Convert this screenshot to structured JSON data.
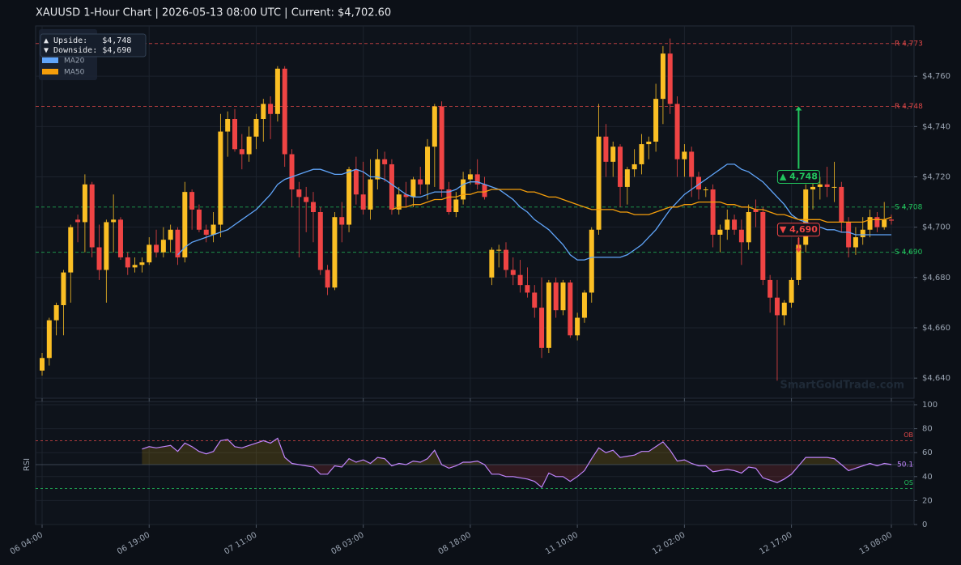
{
  "chart_data": {
    "type": "candlestick",
    "title": "XAUUSD  1-Hour Chart  |  2026-05-13 08:00 UTC  |  Current: $4,702.60",
    "up_color": "#fbbf24",
    "down_color": "#ef4444",
    "categories": [
      "06 04:00",
      null,
      null,
      null,
      null,
      null,
      null,
      null,
      null,
      null,
      null,
      null,
      null,
      null,
      null,
      "06 19:00",
      null,
      null,
      null,
      null,
      null,
      null,
      null,
      null,
      null,
      null,
      null,
      null,
      null,
      null,
      "07 11:00",
      null,
      null,
      null,
      null,
      null,
      null,
      null,
      null,
      null,
      null,
      null,
      null,
      null,
      null,
      "08 03:00",
      null,
      null,
      null,
      null,
      null,
      null,
      null,
      null,
      null,
      null,
      null,
      null,
      null,
      null,
      "08 18:00",
      null,
      null,
      null,
      null,
      null,
      null,
      null,
      null,
      null,
      null,
      null,
      null,
      null,
      null,
      "11 10:00",
      null,
      null,
      null,
      null,
      null,
      null,
      null,
      null,
      null,
      null,
      null,
      null,
      null,
      null,
      "12 02:00",
      null,
      null,
      null,
      null,
      null,
      null,
      null,
      null,
      null,
      null,
      null,
      null,
      null,
      null,
      "12 17:00",
      null,
      null,
      null,
      null,
      null,
      null,
      null,
      null,
      null,
      null,
      null,
      null,
      null,
      "13 08:00"
    ],
    "ohlc": [
      [
        4643,
        4650,
        4641,
        4648
      ],
      [
        4648,
        4664,
        4645,
        4663
      ],
      [
        4663,
        4670,
        4657,
        4669
      ],
      [
        4669,
        4683,
        4657,
        4682
      ],
      [
        4682,
        4701,
        4670,
        4700
      ],
      [
        4703,
        4705,
        4694,
        4702
      ],
      [
        4702,
        4721,
        4690,
        4717
      ],
      [
        4717,
        4718,
        4688,
        4692
      ],
      [
        4692,
        4701,
        4679,
        4683
      ],
      [
        4683,
        4703,
        4670,
        4702
      ],
      [
        4702,
        4713,
        4690,
        4703
      ],
      [
        4703,
        4704,
        4687,
        4688
      ],
      [
        4688,
        4690,
        4681,
        4684
      ],
      [
        4684,
        4688,
        4682,
        4685
      ],
      [
        4685,
        4688,
        4682,
        4686
      ],
      [
        4686,
        4696,
        4685,
        4693
      ],
      [
        4693,
        4699,
        4688,
        4690
      ],
      [
        4690,
        4700,
        4688,
        4695
      ],
      [
        4695,
        4701,
        4690,
        4699
      ],
      [
        4699,
        4700,
        4685,
        4688
      ],
      [
        4688,
        4718,
        4686,
        4714
      ],
      [
        4714,
        4715,
        4699,
        4707
      ],
      [
        4707,
        4709,
        4698,
        4699
      ],
      [
        4699,
        4701,
        4694,
        4697
      ],
      [
        4697,
        4706,
        4694,
        4701
      ],
      [
        4701,
        4745,
        4696,
        4738
      ],
      [
        4738,
        4746,
        4728,
        4743
      ],
      [
        4743,
        4747,
        4730,
        4731
      ],
      [
        4731,
        4737,
        4723,
        4729
      ],
      [
        4729,
        4740,
        4726,
        4736
      ],
      [
        4736,
        4745,
        4731,
        4743
      ],
      [
        4743,
        4751,
        4734,
        4749
      ],
      [
        4749,
        4752,
        4735,
        4745
      ],
      [
        4745,
        4764,
        4742,
        4763
      ],
      [
        4763,
        4764,
        4724,
        4729
      ],
      [
        4729,
        4731,
        4708,
        4715
      ],
      [
        4715,
        4718,
        4688,
        4712
      ],
      [
        4712,
        4716,
        4698,
        4710
      ],
      [
        4710,
        4714,
        4694,
        4706
      ],
      [
        4706,
        4708,
        4681,
        4683
      ],
      [
        4683,
        4685,
        4673,
        4676
      ],
      [
        4676,
        4706,
        4675,
        4704
      ],
      [
        4704,
        4710,
        4694,
        4701
      ],
      [
        4701,
        4724,
        4698,
        4723
      ],
      [
        4723,
        4728,
        4709,
        4713
      ],
      [
        4713,
        4726,
        4705,
        4707
      ],
      [
        4707,
        4727,
        4703,
        4719
      ],
      [
        4719,
        4731,
        4715,
        4727
      ],
      [
        4727,
        4730,
        4718,
        4725
      ],
      [
        4725,
        4727,
        4705,
        4707
      ],
      [
        4707,
        4716,
        4705,
        4713
      ],
      [
        4713,
        4718,
        4708,
        4712
      ],
      [
        4712,
        4720,
        4708,
        4719
      ],
      [
        4719,
        4724,
        4713,
        4717
      ],
      [
        4717,
        4735,
        4711,
        4732
      ],
      [
        4732,
        4749,
        4716,
        4748
      ],
      [
        4748,
        4750,
        4712,
        4715
      ],
      [
        4715,
        4718,
        4705,
        4706
      ],
      [
        4706,
        4714,
        4704,
        4711
      ],
      [
        4711,
        4722,
        4709,
        4719
      ],
      [
        4719,
        4723,
        4717,
        4721
      ],
      [
        4721,
        4727,
        4715,
        4717
      ],
      [
        4717,
        4720,
        4711,
        4712
      ],
      [
        4680,
        4692,
        4677,
        4691
      ],
      [
        4691,
        4693,
        4684,
        4691
      ],
      [
        4691,
        4694,
        4680,
        4683
      ],
      [
        4683,
        4688,
        4677,
        4681
      ],
      [
        4681,
        4687,
        4674,
        4677
      ],
      [
        4677,
        4684,
        4672,
        4674
      ],
      [
        4674,
        4677,
        4664,
        4668
      ],
      [
        4668,
        4680,
        4648,
        4652
      ],
      [
        4652,
        4679,
        4650,
        4678
      ],
      [
        4678,
        4680,
        4664,
        4667
      ],
      [
        4667,
        4679,
        4665,
        4678
      ],
      [
        4678,
        4679,
        4656,
        4657
      ],
      [
        4657,
        4666,
        4655,
        4664
      ],
      [
        4664,
        4675,
        4662,
        4674
      ],
      [
        4674,
        4700,
        4670,
        4699
      ],
      [
        4699,
        4749,
        4697,
        4736
      ],
      [
        4736,
        4741,
        4720,
        4726
      ],
      [
        4726,
        4734,
        4720,
        4732
      ],
      [
        4732,
        4733,
        4708,
        4716
      ],
      [
        4716,
        4724,
        4709,
        4723
      ],
      [
        4723,
        4731,
        4720,
        4725
      ],
      [
        4725,
        4737,
        4721,
        4733
      ],
      [
        4733,
        4736,
        4727,
        4734
      ],
      [
        4734,
        4757,
        4730,
        4751
      ],
      [
        4751,
        4772,
        4741,
        4769
      ],
      [
        4769,
        4775,
        4745,
        4749
      ],
      [
        4749,
        4752,
        4720,
        4727
      ],
      [
        4727,
        4733,
        4720,
        4730
      ],
      [
        4730,
        4732,
        4712,
        4720
      ],
      [
        4720,
        4722,
        4711,
        4715
      ],
      [
        4715,
        4716,
        4712,
        4715
      ],
      [
        4715,
        4717,
        4692,
        4697
      ],
      [
        4697,
        4701,
        4690,
        4699
      ],
      [
        4699,
        4707,
        4695,
        4703
      ],
      [
        4703,
        4705,
        4697,
        4699
      ],
      [
        4699,
        4703,
        4685,
        4694
      ],
      [
        4694,
        4709,
        4691,
        4706
      ],
      [
        4707,
        4711,
        4700,
        4706
      ],
      [
        4706,
        4708,
        4677,
        4679
      ],
      [
        4679,
        4681,
        4666,
        4672
      ],
      [
        4672,
        4679,
        4639,
        4665
      ],
      [
        4665,
        4671,
        4661,
        4670
      ],
      [
        4670,
        4680,
        4668,
        4679
      ],
      [
        4679,
        4696,
        4677,
        4693
      ],
      [
        4693,
        4717,
        4690,
        4715
      ],
      [
        4715,
        4718,
        4707,
        4716
      ],
      [
        4716,
        4720,
        4711,
        4717
      ],
      [
        4717,
        4724,
        4712,
        4716
      ],
      [
        4716,
        4726,
        4710,
        4716
      ],
      [
        4716,
        4718,
        4698,
        4702
      ],
      [
        4702,
        4704,
        4688,
        4692
      ],
      [
        4692,
        4700,
        4689,
        4696
      ],
      [
        4696,
        4704,
        4693,
        4699
      ],
      [
        4699,
        4707,
        4696,
        4704
      ],
      [
        4704,
        4706,
        4698,
        4700
      ],
      [
        4700,
        4710,
        4699,
        4703
      ],
      [
        4703,
        4705,
        4701,
        4702.6
      ]
    ],
    "series": [
      {
        "name": "MA20",
        "color": "#60a5fa",
        "values": [
          null,
          null,
          null,
          null,
          null,
          null,
          null,
          null,
          null,
          null,
          null,
          null,
          null,
          null,
          null,
          null,
          null,
          null,
          null,
          4689,
          4692,
          4694,
          4695,
          4696,
          4697,
          4698,
          4699,
          4701,
          4703,
          4705,
          4707,
          4710,
          4713,
          4717,
          4719,
          4720,
          4721,
          4722,
          4723,
          4723,
          4722,
          4721,
          4721,
          4722,
          4723,
          4722,
          4720,
          4720,
          4719,
          4717,
          4715,
          4713,
          4712,
          4712,
          4713,
          4714,
          4714,
          4714,
          4715,
          4717,
          4718,
          4718,
          4717,
          4716,
          4715,
          4713,
          4711,
          4708,
          4706,
          4703,
          4701,
          4699,
          4696,
          4693,
          4689,
          4687,
          4687,
          4688,
          4688,
          4688,
          4688,
          4688,
          4689,
          4691,
          4693,
          4696,
          4699,
          4703,
          4707,
          4710,
          4713,
          4715,
          4717,
          4719,
          4721,
          4723,
          4725,
          4725,
          4723,
          4722,
          4720,
          4718,
          4715,
          4712,
          4709,
          4705,
          4703,
          4702,
          4701,
          4700,
          4699,
          4699,
          4698,
          4698,
          4697,
          4697,
          4697,
          4697,
          4697,
          4697
        ]
      },
      {
        "name": "MA50",
        "color": "#f59e0b",
        "values": [
          null,
          null,
          null,
          null,
          null,
          null,
          null,
          null,
          null,
          null,
          null,
          null,
          null,
          null,
          null,
          null,
          null,
          null,
          null,
          null,
          null,
          null,
          null,
          null,
          null,
          null,
          null,
          null,
          null,
          null,
          null,
          null,
          null,
          null,
          null,
          null,
          null,
          null,
          null,
          null,
          null,
          null,
          null,
          null,
          null,
          null,
          null,
          null,
          null,
          4707,
          4708,
          4708,
          4709,
          4709,
          4710,
          4711,
          4711,
          4712,
          4712,
          4713,
          4713,
          4714,
          4714,
          4715,
          4715,
          4715,
          4715,
          4715,
          4714,
          4714,
          4713,
          4712,
          4712,
          4711,
          4710,
          4709,
          4708,
          4707,
          4707,
          4707,
          4707,
          4706,
          4706,
          4705,
          4705,
          4705,
          4706,
          4707,
          4708,
          4708,
          4709,
          4709,
          4710,
          4710,
          4710,
          4710,
          4709,
          4709,
          4708,
          4708,
          4707,
          4707,
          4706,
          4705,
          4705,
          4704,
          4703,
          4703,
          4703,
          4703,
          4702,
          4702,
          4702,
          4702,
          4702,
          4702,
          4703,
          4703,
          4703,
          4704
        ]
      }
    ],
    "ylim": [
      4632,
      4780
    ],
    "yticks": [
      {
        "value": 4640,
        "label": "$4,640"
      },
      {
        "value": 4660,
        "label": "$4,660"
      },
      {
        "value": 4680,
        "label": "$4,680"
      },
      {
        "value": 4700,
        "label": "$4,700"
      },
      {
        "value": 4720,
        "label": "$4,720"
      },
      {
        "value": 4740,
        "label": "$4,740"
      },
      {
        "value": 4760,
        "label": "$4,760"
      }
    ],
    "grid": true,
    "levels": [
      {
        "value": 4773,
        "label": "R 4,773",
        "color": "#e04848"
      },
      {
        "value": 4748,
        "label": "R 4,748",
        "color": "#e04848"
      },
      {
        "value": 4708,
        "label": "S 4,708",
        "color": "#22c55e"
      },
      {
        "value": 4690,
        "label": "S 4,690",
        "color": "#22c55e"
      }
    ],
    "annotations": [
      {
        "label": "▲ 4,748",
        "index": 106,
        "from": 4720,
        "to": 4748,
        "color": "#22c55e"
      },
      {
        "label": "▼ 4,690",
        "index": 106,
        "from": 4699,
        "to": 4690,
        "color": "#ef4444"
      }
    ],
    "info_box": [
      "▲ Upside:   $4,748",
      "▼ Downside: $4,690"
    ],
    "watermark": "SmartGoldTrade.com",
    "rsi": {
      "label": "RSI",
      "color": "#c084fc",
      "ylim": [
        0,
        100
      ],
      "yticks": [
        0,
        20,
        40,
        60,
        80,
        100
      ],
      "mid": 50,
      "ob": {
        "value": 70,
        "label": "OB"
      },
      "os": {
        "value": 30,
        "label": "OS"
      },
      "values": [
        null,
        null,
        null,
        null,
        null,
        null,
        null,
        null,
        null,
        null,
        null,
        null,
        null,
        null,
        63,
        65,
        64,
        65,
        66,
        61,
        68,
        65,
        61,
        59,
        61,
        70,
        71,
        65,
        64,
        66,
        68,
        70,
        68,
        72,
        56,
        51,
        50,
        49,
        48,
        42,
        42,
        49,
        48,
        55,
        52,
        54,
        51,
        56,
        55,
        49,
        51,
        50,
        53,
        52,
        55,
        62,
        50,
        47,
        49,
        52,
        52,
        53,
        50,
        42,
        42,
        40,
        40,
        39,
        38,
        36,
        31,
        43,
        40,
        40,
        36,
        40,
        45,
        55,
        64,
        60,
        62,
        56,
        57,
        58,
        61,
        61,
        65,
        69,
        62,
        53,
        54,
        51,
        49,
        49,
        44,
        45,
        46,
        45,
        43,
        48,
        47,
        39,
        37,
        35,
        38,
        42,
        49,
        56,
        56,
        56,
        56,
        55,
        50,
        45,
        47,
        49,
        51,
        49,
        51,
        50.1
      ]
    }
  }
}
